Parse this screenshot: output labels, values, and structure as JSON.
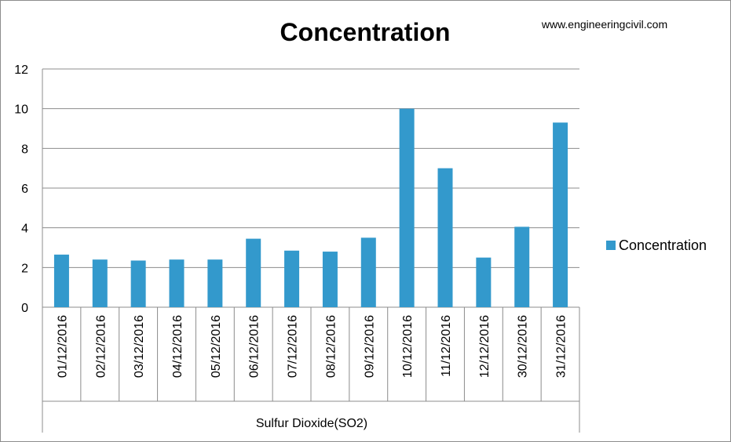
{
  "watermark": "www.engineeringcivil.com",
  "chart_data": {
    "type": "bar",
    "title": "Concentration",
    "group_label": "Sulfur Dioxide(SO2)",
    "categories": [
      "01/12/2016",
      "02/12/2016",
      "03/12/2016",
      "04/12/2016",
      "05/12/2016",
      "06/12/2016",
      "07/12/2016",
      "08/12/2016",
      "09/12/2016",
      "10/12/2016",
      "11/12/2016",
      "12/12/2016",
      "30/12/2016",
      "31/12/2016"
    ],
    "series": [
      {
        "name": "Concentration",
        "color": "#3399cc",
        "values": [
          2.65,
          2.4,
          2.35,
          2.4,
          2.4,
          3.45,
          2.85,
          2.8,
          3.5,
          10.0,
          7.0,
          2.5,
          4.05,
          9.3
        ]
      }
    ],
    "ylim": [
      0,
      12
    ],
    "yticks": [
      0,
      2,
      4,
      6,
      8,
      10,
      12
    ],
    "grid": true,
    "legend_position": "right"
  }
}
